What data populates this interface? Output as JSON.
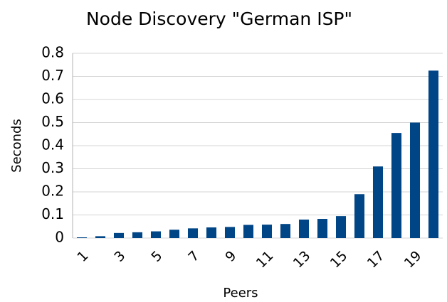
{
  "chart_data": {
    "type": "bar",
    "title": "Node Discovery \"German ISP\"",
    "xlabel": "Peers",
    "ylabel": "Seconds",
    "categories": [
      "1",
      null,
      "3",
      null,
      "5",
      null,
      "7",
      null,
      "9",
      null,
      "11",
      null,
      "13",
      null,
      "15",
      null,
      "17",
      null,
      "19",
      null
    ],
    "values": [
      0.003,
      0.008,
      0.022,
      0.025,
      0.029,
      0.036,
      0.042,
      0.046,
      0.048,
      0.057,
      0.058,
      0.061,
      0.08,
      0.083,
      0.095,
      0.19,
      0.31,
      0.455,
      0.5,
      0.725
    ],
    "color": "#004586",
    "ylim": [
      0,
      0.8
    ],
    "yticks": [
      0,
      0.1,
      0.2,
      0.3,
      0.4,
      0.5,
      0.6,
      0.7,
      0.8
    ],
    "grid": true
  }
}
